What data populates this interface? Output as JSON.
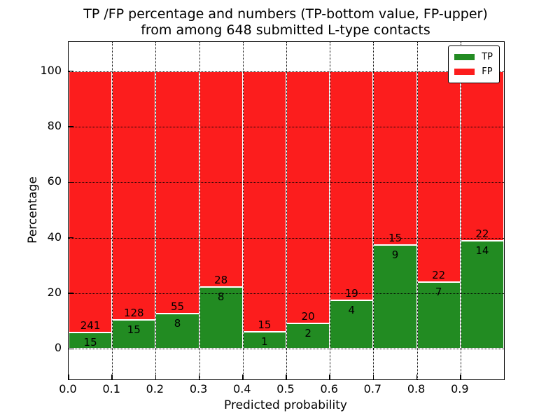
{
  "title": {
    "line1": "TP /FP percentage and numbers (TP-bottom value, FP-upper)",
    "line2": "from among 648 submitted L-type contacts"
  },
  "axes": {
    "xlabel": "Predicted probability",
    "ylabel": "Percentage",
    "x_tick_labels": [
      "0.0",
      "0.1",
      "0.2",
      "0.3",
      "0.4",
      "0.5",
      "0.6",
      "0.7",
      "0.8",
      "0.9"
    ],
    "y_tick_values": [
      0,
      20,
      40,
      60,
      80,
      100
    ],
    "xlim": [
      0.0,
      1.0
    ],
    "ylim": [
      -11,
      110.5
    ],
    "grid_style": "dotted"
  },
  "legend": {
    "position": "upper-right",
    "items": [
      {
        "name": "tp",
        "label": "TP",
        "color": "#228b22"
      },
      {
        "name": "fp",
        "label": "FP",
        "color": "#fc1d1d"
      }
    ]
  },
  "chart_data": {
    "type": "bar",
    "subtype": "stacked-100-percent",
    "title": "TP /FP percentage and numbers (TP-bottom value, FP-upper) from among 648 submitted L-type contacts",
    "xlabel": "Predicted probability",
    "ylabel": "Percentage",
    "total_contacts": 648,
    "bin_width": 0.1,
    "note": "Each bar totals 100%; green TP portion height = tp_count/(tp_count+fp_count)*100; numbers printed at boundary: FP count above, TP count below",
    "bins": [
      {
        "x0": 0.0,
        "x1": 0.1,
        "tp_count": 15,
        "fp_count": 241,
        "tp_pct": 5.86
      },
      {
        "x0": 0.1,
        "x1": 0.2,
        "tp_count": 15,
        "fp_count": 128,
        "tp_pct": 10.49
      },
      {
        "x0": 0.2,
        "x1": 0.3,
        "tp_count": 8,
        "fp_count": 55,
        "tp_pct": 12.7
      },
      {
        "x0": 0.3,
        "x1": 0.4,
        "tp_count": 8,
        "fp_count": 28,
        "tp_pct": 22.22
      },
      {
        "x0": 0.4,
        "x1": 0.5,
        "tp_count": 1,
        "fp_count": 15,
        "tp_pct": 6.25
      },
      {
        "x0": 0.5,
        "x1": 0.6,
        "tp_count": 2,
        "fp_count": 20,
        "tp_pct": 9.09
      },
      {
        "x0": 0.6,
        "x1": 0.7,
        "tp_count": 4,
        "fp_count": 19,
        "tp_pct": 17.39
      },
      {
        "x0": 0.7,
        "x1": 0.8,
        "tp_count": 9,
        "fp_count": 15,
        "tp_pct": 37.5
      },
      {
        "x0": 0.8,
        "x1": 0.9,
        "tp_count": 7,
        "fp_count": 22,
        "tp_pct": 24.14
      },
      {
        "x0": 0.9,
        "x1": 1.0,
        "tp_count": 14,
        "fp_count": 22,
        "tp_pct": 38.89
      }
    ]
  },
  "colors": {
    "tp_green": "#228b22",
    "fp_red": "#fc1d1d",
    "bar_edge": "#ffffff",
    "grid": "#000000",
    "text": "#000000",
    "background": "#ffffff"
  }
}
